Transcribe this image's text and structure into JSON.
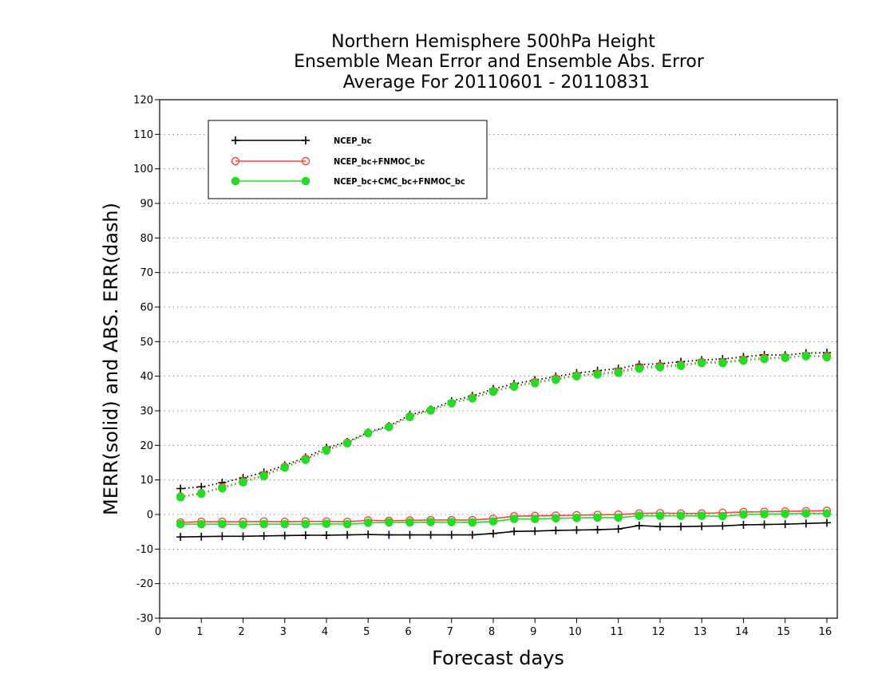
{
  "chart_data": {
    "type": "line",
    "title": [
      "Northern Hemisphere 500hPa Height",
      "Ensemble Mean Error and Ensemble Abs. Error",
      "Average For 20110601 - 20110831"
    ],
    "xlabel": "Forecast days",
    "ylabel": "MERR(solid) and ABS. ERR(dash)",
    "xlim": [
      0,
      16.25
    ],
    "ylim": [
      -30,
      120
    ],
    "xticks": [
      0,
      1,
      2,
      3,
      4,
      5,
      6,
      7,
      8,
      9,
      10,
      11,
      12,
      13,
      14,
      15,
      16
    ],
    "yticks": [
      -30,
      -20,
      -10,
      0,
      10,
      20,
      30,
      40,
      50,
      60,
      70,
      80,
      90,
      100,
      110,
      120
    ],
    "grid": "horizontal dotted",
    "legend_position": "top-left",
    "x": [
      0.5,
      1.0,
      1.5,
      2.0,
      2.5,
      3.0,
      3.5,
      4.0,
      4.5,
      5.0,
      5.5,
      6.0,
      6.5,
      7.0,
      7.5,
      8.0,
      8.5,
      9.0,
      9.5,
      10.0,
      10.5,
      11.0,
      11.5,
      12.0,
      12.5,
      13.0,
      13.5,
      14.0,
      14.5,
      15.0,
      15.5,
      16.0
    ],
    "series": [
      {
        "name": "NCEP_bc",
        "color": "#000000",
        "marker": "plus",
        "merr": [
          -6.5,
          -6.4,
          -6.3,
          -6.3,
          -6.2,
          -6.1,
          -6.0,
          -6.0,
          -5.9,
          -5.8,
          -5.9,
          -5.9,
          -5.9,
          -5.9,
          -5.9,
          -5.5,
          -4.9,
          -4.8,
          -4.6,
          -4.5,
          -4.4,
          -4.2,
          -3.2,
          -3.5,
          -3.5,
          -3.4,
          -3.3,
          -3.0,
          -2.9,
          -2.8,
          -2.6,
          -2.4
        ],
        "abs_err": [
          7.5,
          8.0,
          9.2,
          10.6,
          12.2,
          14.2,
          16.5,
          19.3,
          21.0,
          23.8,
          25.6,
          28.8,
          30.4,
          32.8,
          34.3,
          36.3,
          37.8,
          38.9,
          39.9,
          40.9,
          41.6,
          42.2,
          43.4,
          43.6,
          44.2,
          44.7,
          45.0,
          45.6,
          46.2,
          46.1,
          46.7,
          46.8
        ]
      },
      {
        "name": "NCEP_bc+FNMOC_bc",
        "color": "#ff4040",
        "marker": "open-circle",
        "merr": [
          -2.3,
          -2.1,
          -2.1,
          -2.1,
          -2.0,
          -2.1,
          -2.0,
          -2.0,
          -2.1,
          -1.7,
          -1.8,
          -1.7,
          -1.6,
          -1.6,
          -1.6,
          -1.2,
          -0.5,
          -0.4,
          -0.3,
          -0.2,
          -0.1,
          0.0,
          0.3,
          0.4,
          0.3,
          0.3,
          0.5,
          0.7,
          0.8,
          0.9,
          1.0,
          1.1
        ],
        "abs_err": [
          5.2,
          6.2,
          7.9,
          9.6,
          11.4,
          13.8,
          16.1,
          18.7,
          20.8,
          23.6,
          25.4,
          28.4,
          30.2,
          32.2,
          33.8,
          35.7,
          37.2,
          38.3,
          39.3,
          40.2,
          40.8,
          41.4,
          42.7,
          43.0,
          43.3,
          44.1,
          44.1,
          44.8,
          45.3,
          45.5,
          45.9,
          45.9
        ]
      },
      {
        "name": "NCEP_bc+CMC_bc+FNMOC_bc",
        "color": "#22dd22",
        "marker": "filled-circle",
        "merr": [
          -2.8,
          -2.8,
          -2.8,
          -2.9,
          -2.8,
          -2.8,
          -2.8,
          -2.7,
          -2.8,
          -2.4,
          -2.3,
          -2.3,
          -2.2,
          -2.2,
          -2.3,
          -2.0,
          -1.3,
          -1.3,
          -1.1,
          -1.0,
          -0.9,
          -0.9,
          -0.4,
          -0.4,
          -0.4,
          -0.4,
          -0.5,
          0.0,
          0.1,
          0.2,
          0.3,
          0.3
        ],
        "abs_err": [
          5.0,
          6.0,
          7.6,
          9.3,
          11.1,
          13.6,
          15.8,
          18.5,
          20.6,
          23.5,
          25.3,
          28.2,
          30.1,
          32.2,
          33.6,
          35.5,
          37.0,
          38.0,
          39.0,
          40.0,
          40.5,
          41.0,
          42.2,
          42.6,
          43.0,
          43.8,
          43.8,
          44.5,
          45.0,
          45.3,
          45.8,
          45.5
        ]
      }
    ]
  }
}
